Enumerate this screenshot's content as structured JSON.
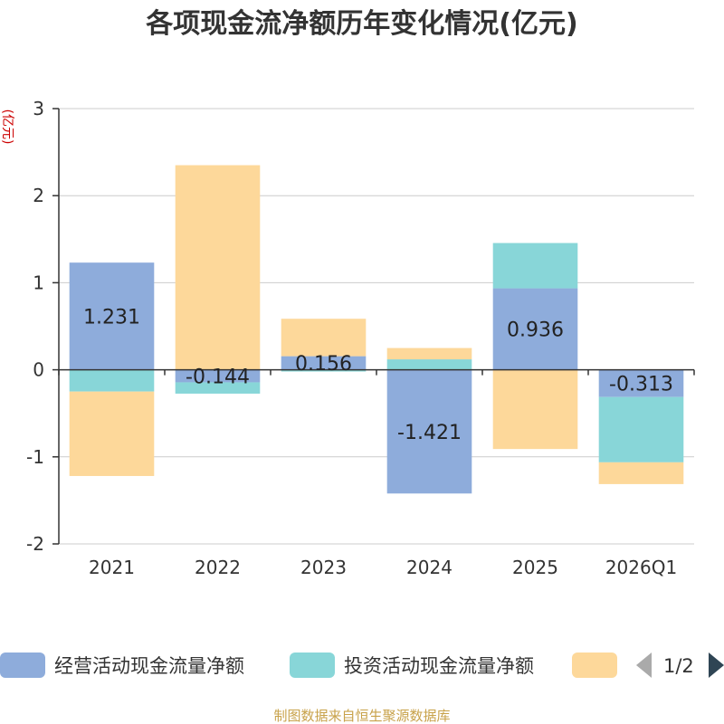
{
  "chart_data": {
    "type": "bar",
    "stacked": true,
    "title": "各项现金流净额历年变化情况(亿元)",
    "ylabel": "(亿元)",
    "xlabel": "",
    "ylim": [
      -2,
      3
    ],
    "yticks": [
      -2,
      -1,
      0,
      1,
      2,
      3
    ],
    "categories": [
      "2021",
      "2022",
      "2023",
      "2024",
      "2025",
      "2026Q1"
    ],
    "series": [
      {
        "name": "经营活动现金流量净额",
        "color": "#8eacdb",
        "values": [
          1.231,
          -0.144,
          0.156,
          -1.421,
          0.936,
          -0.313
        ],
        "show_labels": true
      },
      {
        "name": "投资活动现金流量净额",
        "color": "#88d6d8",
        "values": [
          -0.25,
          -0.13,
          -0.02,
          0.12,
          0.52,
          -0.75
        ],
        "show_labels": false
      },
      {
        "name": "",
        "color": "#fdd89a",
        "values": [
          -0.97,
          2.35,
          0.43,
          0.13,
          -0.91,
          -0.25
        ],
        "show_labels": false
      }
    ],
    "legend_position": "bottom",
    "legend_page": "1/2",
    "source": "制图数据来自恒生聚源数据库"
  }
}
